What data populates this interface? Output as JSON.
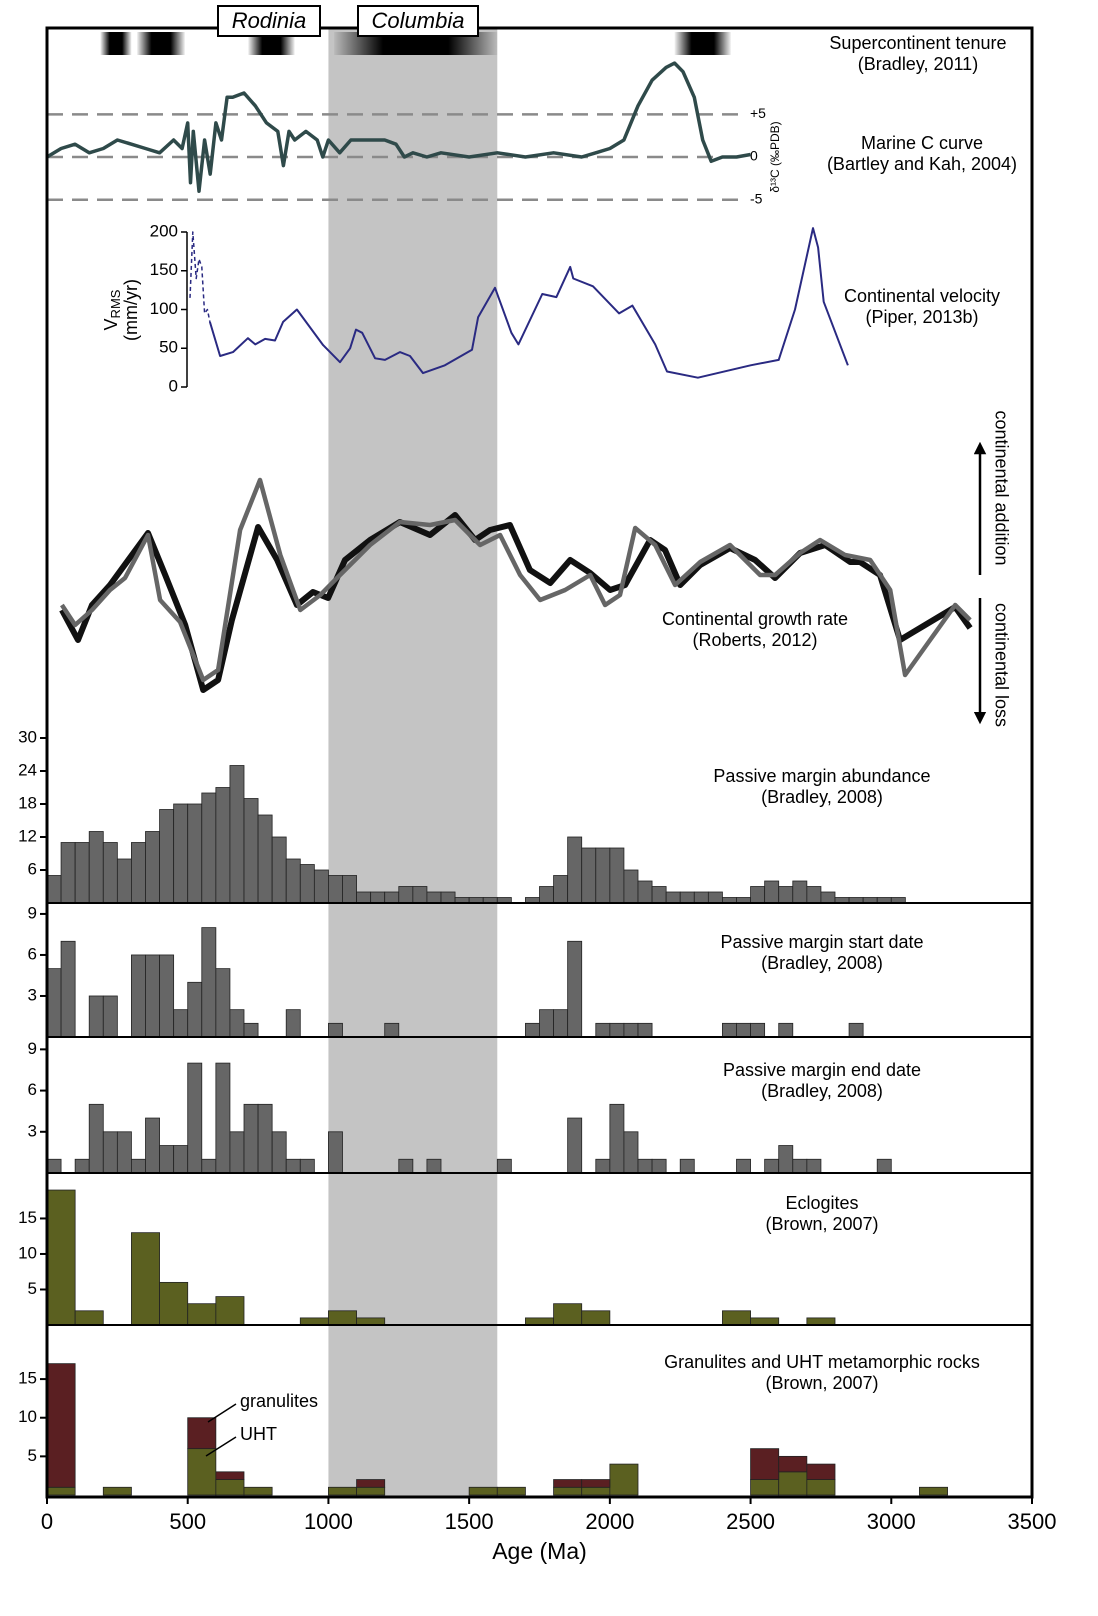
{
  "chart_data": [
    {
      "type": "timeline",
      "title": "Supercontinent tenure",
      "subtitle": "(Bradley, 2011)",
      "ranges": [
        [
          190,
          300
        ],
        [
          320,
          490
        ],
        [
          715,
          880
        ],
        [
          1020,
          1600
        ],
        [
          2230,
          2430
        ]
      ],
      "annotations": [
        "Rodinia",
        "Columbia"
      ]
    },
    {
      "type": "line",
      "title": "Marine C curve",
      "subtitle": "(Bartley and Kah, 2004)",
      "ylabel": "δ¹³C (‰PDB)",
      "ylim": [
        -5.5,
        11.6
      ],
      "yticks": [
        {
          "value": 5,
          "label": "+5"
        },
        0,
        -5
      ],
      "grid": true,
      "axis_side": "right",
      "series": [
        {
          "color": "#2f4a4a",
          "x": [
            0,
            50,
            100,
            150,
            200,
            250,
            300,
            350,
            400,
            450,
            480,
            500,
            510,
            520,
            540,
            560,
            580,
            600,
            620,
            640,
            660,
            700,
            740,
            780,
            820,
            840,
            860,
            880,
            920,
            960,
            980,
            1000,
            1040,
            1080,
            1140,
            1200,
            1240,
            1270,
            1300,
            1350,
            1400,
            1500,
            1600,
            1700,
            1800,
            1900,
            1950,
            2000,
            2050,
            2100,
            2150,
            2200,
            2230,
            2260,
            2300,
            2330,
            2360,
            2400,
            2450,
            2500
          ],
          "values": [
            0,
            1,
            1.5,
            0.5,
            1,
            2,
            1.5,
            1,
            0.5,
            2,
            1,
            4,
            -3,
            3,
            -4,
            2,
            -2,
            4,
            2,
            7,
            7,
            7.5,
            6,
            4,
            3,
            -1,
            3,
            2,
            3,
            2,
            0,
            2,
            0.5,
            2,
            2,
            2,
            1.5,
            0,
            0.5,
            0,
            0.5,
            0,
            0.5,
            0,
            0.5,
            0,
            0.5,
            1,
            2,
            6,
            9,
            10.5,
            11,
            10,
            7,
            2,
            -0.5,
            0,
            0,
            0.3
          ]
        }
      ]
    },
    {
      "type": "line",
      "title": "Continental velocity",
      "subtitle": "(Piper, 2013b)",
      "ylabel": {
        "main": "V",
        "sub": "RMS",
        "unit": "(mm/yr)"
      },
      "ylim": [
        0,
        200
      ],
      "yticks": [
        0,
        50,
        100,
        150,
        200
      ],
      "grid": false,
      "axis_side": "left",
      "series": [
        {
          "color": "#2a2a82",
          "dashed": true,
          "x": [
            508,
            518,
            530,
            540,
            550,
            560,
            570,
            579
          ],
          "values": [
            115,
            200,
            140,
            165,
            155,
            95,
            100,
            84
          ]
        },
        {
          "color": "#2a2a82",
          "dashed": false,
          "x": [
            579,
            615,
            661,
            714,
            740,
            775,
            810,
            839,
            888,
            981,
            1041,
            1077,
            1098,
            1120,
            1166,
            1201,
            1254,
            1290,
            1336,
            1414,
            1510,
            1532,
            1592,
            1650,
            1675,
            1760,
            1810,
            1859,
            1870,
            1940,
            2033,
            2080,
            2161,
            2203,
            2313,
            2500,
            2600,
            2658,
            2722,
            2740,
            2760,
            2846
          ],
          "values": [
            84,
            40,
            45,
            63,
            55,
            62,
            60,
            84,
            100,
            54,
            32,
            50,
            74,
            70,
            37,
            35,
            45,
            40,
            18,
            28,
            48,
            90,
            128,
            70,
            55,
            120,
            116,
            155,
            140,
            130,
            95,
            105,
            55,
            20,
            12,
            28,
            35,
            100,
            205,
            180,
            110,
            28
          ]
        }
      ]
    },
    {
      "type": "line",
      "title": "Continental growth rate",
      "subtitle": "(Roberts, 2012)",
      "annotations": [
        "continental addition",
        "continental loss"
      ],
      "ylim": [
        -12,
        14
      ],
      "series": [
        {
          "color": "#111111",
          "x": [
            53,
            110,
            160,
            224,
            359,
            420,
            491,
            555,
            608,
            657,
            750,
            818,
            888,
            945,
            999,
            1059,
            1148,
            1254,
            1361,
            1450,
            1521,
            1574,
            1645,
            1716,
            1788,
            1859,
            1930,
            2001,
            2054,
            2143,
            2196,
            2250,
            2321,
            2427,
            2516,
            2587,
            2676,
            2765,
            2854,
            2889,
            2960,
            3031,
            3120,
            3227,
            3280
          ],
          "values": [
            -1,
            -4,
            -0.5,
            1.5,
            6.7,
            2.5,
            -2.5,
            -9,
            -8,
            -2,
            7.3,
            4,
            -0.5,
            0.8,
            0.2,
            4,
            6,
            7.8,
            6.5,
            8.5,
            6,
            7,
            7.5,
            3,
            1.7,
            4,
            2.7,
            1,
            1.5,
            6,
            5,
            1.5,
            3.5,
            5.2,
            4,
            2.2,
            4.7,
            5.5,
            3.8,
            3.8,
            2.5,
            -4,
            -2.5,
            -0.7,
            -2.8
          ]
        },
        {
          "color": "#666666",
          "x": [
            53,
            100,
            160,
            224,
            277,
            359,
            402,
            473,
            555,
            608,
            686,
            757,
            829,
            900,
            971,
            1041,
            1148,
            1254,
            1361,
            1450,
            1539,
            1610,
            1681,
            1752,
            1841,
            1930,
            1983,
            2036,
            2090,
            2161,
            2232,
            2321,
            2427,
            2534,
            2587,
            2676,
            2747,
            2836,
            2925,
            2996,
            3049,
            3138,
            3227,
            3280
          ],
          "values": [
            -0.5,
            -2.5,
            -1,
            1,
            2.2,
            6.5,
            0,
            -2.2,
            -8,
            -7,
            7,
            12,
            4.5,
            -1,
            0.5,
            2.5,
            5.5,
            7.8,
            7.5,
            8,
            5.5,
            6.5,
            2.5,
            0,
            1,
            2.5,
            -0.5,
            0.5,
            7.2,
            5.5,
            1.5,
            3.8,
            5.5,
            2.5,
            2.5,
            4.7,
            6,
            4.5,
            4,
            1,
            -7.5,
            -4,
            -0.5,
            -2
          ]
        }
      ]
    },
    {
      "type": "histogram",
      "title": "Passive margin abundance",
      "subtitle": "(Bradley, 2008)",
      "color": "#666666",
      "ylim": [
        0,
        30
      ],
      "yticks": [
        6,
        12,
        18,
        24,
        30
      ],
      "bins": [
        0,
        50,
        100,
        150,
        200,
        250,
        300,
        350,
        400,
        450,
        500,
        550,
        600,
        650,
        700,
        750,
        800,
        850,
        900,
        950,
        1000,
        1050,
        1100,
        1150,
        1200,
        1250,
        1300,
        1350,
        1400,
        1450,
        1500,
        1550,
        1600,
        1650,
        1700,
        1750,
        1800,
        1850,
        1900,
        1950,
        2000,
        2050,
        2100,
        2150,
        2200,
        2250,
        2300,
        2350,
        2400,
        2450,
        2500,
        2550,
        2600,
        2650,
        2700,
        2750,
        2800,
        2850,
        2900,
        2950,
        3000,
        3050
      ],
      "values": [
        5,
        11,
        11,
        13,
        11,
        8,
        11,
        13,
        17,
        18,
        18,
        20,
        21,
        25,
        19,
        16,
        12,
        8,
        7,
        6,
        5,
        5,
        2,
        2,
        2,
        3,
        3,
        2,
        2,
        1,
        1,
        1,
        1,
        0,
        1,
        3,
        5,
        12,
        10,
        10,
        10,
        6,
        4,
        3,
        2,
        2,
        2,
        2,
        1,
        1,
        3,
        4,
        3,
        4,
        3,
        2,
        1,
        1,
        1,
        1,
        1
      ]
    },
    {
      "type": "histogram",
      "title": "Passive margin start date",
      "subtitle": "(Bradley, 2008)",
      "color": "#666666",
      "ylim": [
        0,
        9.8
      ],
      "yticks": [
        3,
        6,
        9
      ],
      "bins": [
        0,
        50,
        100,
        150,
        200,
        250,
        300,
        350,
        400,
        450,
        500,
        550,
        600,
        650,
        700,
        750,
        800,
        850,
        900,
        950,
        1000,
        1050,
        1100,
        1150,
        1200,
        1250,
        1300,
        1350,
        1400,
        1450,
        1500,
        1550,
        1600,
        1650,
        1700,
        1750,
        1800,
        1850,
        1900,
        1950,
        2000,
        2050,
        2100,
        2150,
        2200,
        2250,
        2300,
        2350,
        2400,
        2450,
        2500,
        2550,
        2600,
        2650,
        2700,
        2750,
        2800,
        2850,
        2900
      ],
      "values": [
        5,
        7,
        0,
        3,
        3,
        0,
        6,
        6,
        6,
        2,
        4,
        8,
        5,
        2,
        1,
        0,
        0,
        2,
        0,
        0,
        1,
        0,
        0,
        0,
        1,
        0,
        0,
        0,
        0,
        0,
        0,
        0,
        0,
        0,
        1,
        2,
        2,
        7,
        0,
        1,
        1,
        1,
        1,
        0,
        0,
        0,
        0,
        0,
        1,
        1,
        1,
        0,
        1,
        0,
        0,
        0,
        0,
        1
      ]
    },
    {
      "type": "histogram",
      "title": "Passive margin end date",
      "subtitle": "(Bradley, 2008)",
      "color": "#666666",
      "ylim": [
        0,
        9.9
      ],
      "yticks": [
        3,
        6,
        9
      ],
      "bins": [
        0,
        50,
        100,
        150,
        200,
        250,
        300,
        350,
        400,
        450,
        500,
        550,
        600,
        650,
        700,
        750,
        800,
        850,
        900,
        950,
        1000,
        1050,
        1100,
        1150,
        1200,
        1250,
        1300,
        1350,
        1400,
        1450,
        1500,
        1550,
        1600,
        1650,
        1700,
        1750,
        1800,
        1850,
        1900,
        1950,
        2000,
        2050,
        2100,
        2150,
        2200,
        2250,
        2300,
        2350,
        2400,
        2450,
        2500,
        2550,
        2600,
        2650,
        2700,
        2750,
        2800,
        2850,
        2900,
        2950,
        3000
      ],
      "values": [
        1,
        0,
        1,
        5,
        3,
        3,
        1,
        4,
        2,
        2,
        8,
        1,
        8,
        3,
        5,
        5,
        3,
        1,
        1,
        0,
        3,
        0,
        0,
        0,
        0,
        1,
        0,
        1,
        0,
        0,
        0,
        0,
        1,
        0,
        0,
        0,
        0,
        4,
        0,
        1,
        5,
        3,
        1,
        1,
        0,
        1,
        0,
        0,
        0,
        1,
        0,
        1,
        2,
        1,
        1,
        0,
        0,
        0,
        0,
        1
      ]
    },
    {
      "type": "histogram",
      "title": "Eclogites",
      "subtitle": "(Brown, 2007)",
      "color": "#5b6020",
      "ylim": [
        0,
        21.4
      ],
      "yticks": [
        5,
        10,
        15
      ],
      "bins": [
        0,
        100,
        200,
        300,
        400,
        500,
        600,
        700,
        800,
        900,
        1000,
        1100,
        1200,
        1300,
        1400,
        1500,
        1600,
        1700,
        1800,
        1900,
        2000,
        2100,
        2200,
        2300,
        2400,
        2500,
        2600,
        2700,
        2800
      ],
      "values": [
        19,
        2,
        0,
        13,
        6,
        3,
        4,
        0,
        0,
        1,
        2,
        1,
        0,
        0,
        0,
        0,
        0,
        1,
        3,
        2,
        0,
        0,
        0,
        0,
        2,
        1,
        0,
        1
      ]
    },
    {
      "type": "stacked_histogram",
      "title": "Granulites and UHT metamorphic rocks",
      "subtitle": "(Brown, 2007)",
      "ylim": [
        0,
        22
      ],
      "yticks": [
        5,
        10,
        15
      ],
      "bins": [
        0,
        100,
        200,
        300,
        400,
        500,
        600,
        700,
        800,
        900,
        1000,
        1100,
        1200,
        1300,
        1400,
        1500,
        1600,
        1700,
        1800,
        1900,
        2000,
        2100,
        2200,
        2300,
        2400,
        2500,
        2600,
        2700,
        2800,
        2900,
        3000,
        3100,
        3200
      ],
      "series": [
        {
          "name": "UHT",
          "color": "#5b6020",
          "values": [
            1,
            0,
            1,
            0,
            0,
            6,
            2,
            1,
            0,
            0,
            1,
            1,
            0,
            0,
            0,
            1,
            1,
            0,
            1,
            1,
            4,
            0,
            0,
            0,
            0,
            2,
            3,
            2,
            0,
            0,
            0,
            1
          ]
        },
        {
          "name": "granulites",
          "color": "#5a1f22",
          "values": [
            16,
            0,
            0,
            0,
            0,
            4,
            1,
            0,
            0,
            0,
            0,
            1,
            0,
            0,
            0,
            0,
            0,
            0,
            1,
            1,
            0,
            0,
            0,
            0,
            0,
            4,
            2,
            2,
            0,
            0,
            0,
            0
          ]
        }
      ],
      "xlim": [
        0,
        3500
      ],
      "xticks": [
        0,
        500,
        1000,
        1500,
        2000,
        2500,
        3000,
        3500
      ],
      "xlabel": "Age (Ma)",
      "shaded_range": [
        1000,
        1600
      ],
      "shaded_color": "#c4c4c4"
    }
  ]
}
